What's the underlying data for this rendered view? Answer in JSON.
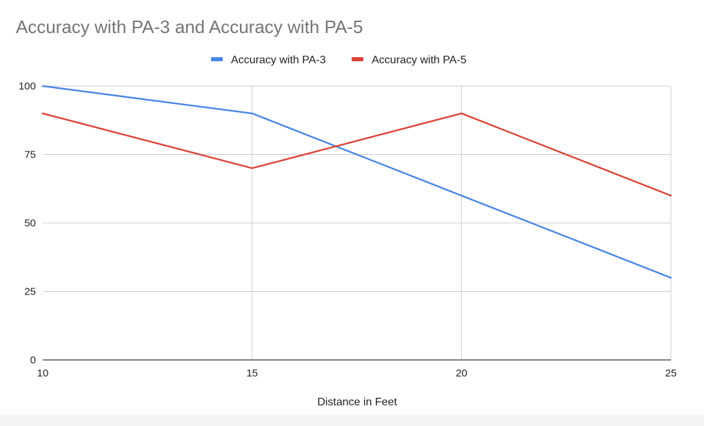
{
  "chart_data": {
    "type": "line",
    "title": "Accuracy with PA-3 and Accuracy with PA-5",
    "xlabel": "Distance in Feet",
    "ylabel": "",
    "x": [
      10,
      15,
      20,
      25
    ],
    "xlim": [
      10,
      25
    ],
    "ylim": [
      0,
      100
    ],
    "x_ticks": [
      "10",
      "15",
      "20",
      "25"
    ],
    "y_ticks": [
      "0",
      "25",
      "50",
      "75",
      "100"
    ],
    "grid": true,
    "legend_position": "top",
    "series": [
      {
        "name": "Accuracy with PA-3",
        "color": "#4a86e8",
        "values": [
          100,
          90,
          60,
          30
        ]
      },
      {
        "name": "Accuracy with PA-5",
        "color": "#db4437",
        "values": [
          90,
          70,
          90,
          60
        ]
      }
    ]
  }
}
